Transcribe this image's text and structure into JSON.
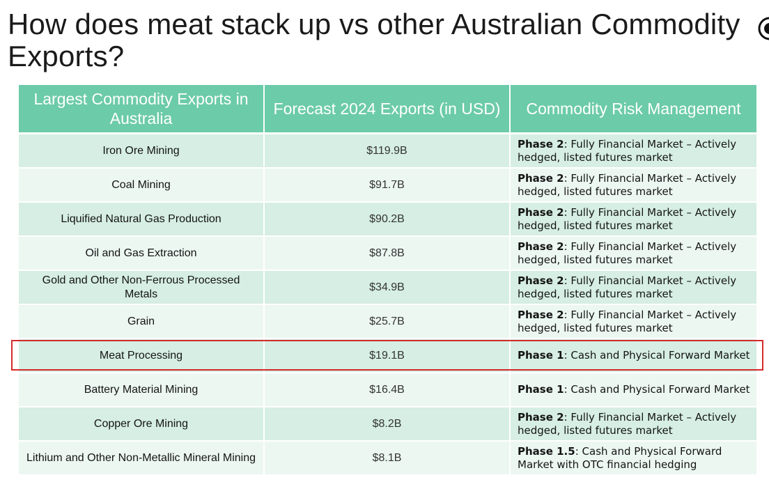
{
  "title": "How does meat stack up vs other Australian Commodity Exports?",
  "table": {
    "headers": [
      "Largest Commodity Exports in Australia",
      "Forecast 2024 Exports (in USD)",
      "Commodity Risk Management"
    ],
    "rows": [
      {
        "name": "Iron Ore Mining",
        "value": "$119.9B",
        "phase": "Phase 2",
        "desc": ": Fully Financial Market – Actively hedged, listed futures market"
      },
      {
        "name": "Coal Mining",
        "value": "$91.7B",
        "phase": "Phase 2",
        "desc": ": Fully Financial Market – Actively hedged, listed futures market"
      },
      {
        "name": "Liquified Natural Gas Production",
        "value": "$90.2B",
        "phase": "Phase 2",
        "desc": ": Fully Financial Market – Actively hedged, listed futures market"
      },
      {
        "name": "Oil and Gas Extraction",
        "value": "$87.8B",
        "phase": "Phase 2",
        "desc": ": Fully Financial Market – Actively hedged, listed futures market"
      },
      {
        "name": "Gold and Other Non-Ferrous Processed Metals",
        "value": "$34.9B",
        "phase": "Phase 2",
        "desc": ": Fully Financial Market – Actively hedged, listed futures market"
      },
      {
        "name": "Grain",
        "value": "$25.7B",
        "phase": "Phase 2",
        "desc": ": Fully Financial Market – Actively hedged, listed futures market"
      },
      {
        "name": "Meat Processing",
        "value": "$19.1B",
        "phase": "Phase 1",
        "desc": ": Cash and Physical Forward Market"
      },
      {
        "name": "Battery Material Mining",
        "value": "$16.4B",
        "phase": "Phase 1",
        "desc": ": Cash and Physical Forward Market"
      },
      {
        "name": "Copper Ore Mining",
        "value": "$8.2B",
        "phase": "Phase 2",
        "desc": ": Fully Financial Market – Actively hedged, listed futures market"
      },
      {
        "name": "Lithium and Other Non-Metallic Mineral Mining",
        "value": "$8.1B",
        "phase": "Phase 1.5",
        "desc": ": Cash and Physical Forward Market with OTC financial hedging"
      }
    ],
    "highlighted_row": 6
  },
  "colors": {
    "header_bg": "#6ccba9",
    "row_odd": "#d6eee3",
    "row_even": "#ecf7f2",
    "highlight_border": "#d42a2a"
  },
  "icons": {
    "logo": "logo-icon"
  }
}
